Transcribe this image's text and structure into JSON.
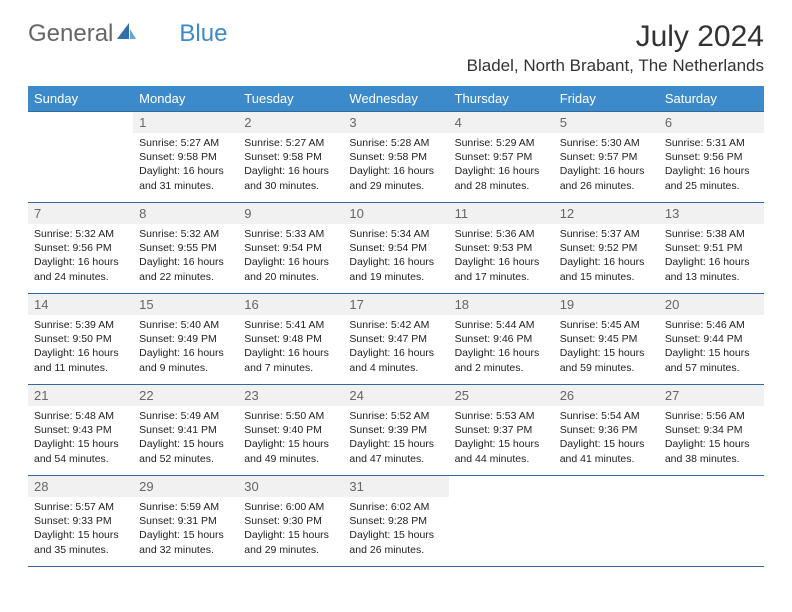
{
  "brand": {
    "part1": "General",
    "part2": "Blue"
  },
  "title": "July 2024",
  "location": "Bladel, North Brabant, The Netherlands",
  "colors": {
    "header_bg": "#3c8ac9",
    "header_text": "#ffffff",
    "border": "#34679a",
    "daynum_bg": "#f1f1f1",
    "daynum_text": "#666666",
    "body_text": "#222222",
    "background": "#ffffff"
  },
  "days_of_week": [
    "Sunday",
    "Monday",
    "Tuesday",
    "Wednesday",
    "Thursday",
    "Friday",
    "Saturday"
  ],
  "weeks": [
    [
      null,
      {
        "n": "1",
        "sr": "Sunrise: 5:27 AM",
        "ss": "Sunset: 9:58 PM",
        "d1": "Daylight: 16 hours",
        "d2": "and 31 minutes."
      },
      {
        "n": "2",
        "sr": "Sunrise: 5:27 AM",
        "ss": "Sunset: 9:58 PM",
        "d1": "Daylight: 16 hours",
        "d2": "and 30 minutes."
      },
      {
        "n": "3",
        "sr": "Sunrise: 5:28 AM",
        "ss": "Sunset: 9:58 PM",
        "d1": "Daylight: 16 hours",
        "d2": "and 29 minutes."
      },
      {
        "n": "4",
        "sr": "Sunrise: 5:29 AM",
        "ss": "Sunset: 9:57 PM",
        "d1": "Daylight: 16 hours",
        "d2": "and 28 minutes."
      },
      {
        "n": "5",
        "sr": "Sunrise: 5:30 AM",
        "ss": "Sunset: 9:57 PM",
        "d1": "Daylight: 16 hours",
        "d2": "and 26 minutes."
      },
      {
        "n": "6",
        "sr": "Sunrise: 5:31 AM",
        "ss": "Sunset: 9:56 PM",
        "d1": "Daylight: 16 hours",
        "d2": "and 25 minutes."
      }
    ],
    [
      {
        "n": "7",
        "sr": "Sunrise: 5:32 AM",
        "ss": "Sunset: 9:56 PM",
        "d1": "Daylight: 16 hours",
        "d2": "and 24 minutes."
      },
      {
        "n": "8",
        "sr": "Sunrise: 5:32 AM",
        "ss": "Sunset: 9:55 PM",
        "d1": "Daylight: 16 hours",
        "d2": "and 22 minutes."
      },
      {
        "n": "9",
        "sr": "Sunrise: 5:33 AM",
        "ss": "Sunset: 9:54 PM",
        "d1": "Daylight: 16 hours",
        "d2": "and 20 minutes."
      },
      {
        "n": "10",
        "sr": "Sunrise: 5:34 AM",
        "ss": "Sunset: 9:54 PM",
        "d1": "Daylight: 16 hours",
        "d2": "and 19 minutes."
      },
      {
        "n": "11",
        "sr": "Sunrise: 5:36 AM",
        "ss": "Sunset: 9:53 PM",
        "d1": "Daylight: 16 hours",
        "d2": "and 17 minutes."
      },
      {
        "n": "12",
        "sr": "Sunrise: 5:37 AM",
        "ss": "Sunset: 9:52 PM",
        "d1": "Daylight: 16 hours",
        "d2": "and 15 minutes."
      },
      {
        "n": "13",
        "sr": "Sunrise: 5:38 AM",
        "ss": "Sunset: 9:51 PM",
        "d1": "Daylight: 16 hours",
        "d2": "and 13 minutes."
      }
    ],
    [
      {
        "n": "14",
        "sr": "Sunrise: 5:39 AM",
        "ss": "Sunset: 9:50 PM",
        "d1": "Daylight: 16 hours",
        "d2": "and 11 minutes."
      },
      {
        "n": "15",
        "sr": "Sunrise: 5:40 AM",
        "ss": "Sunset: 9:49 PM",
        "d1": "Daylight: 16 hours",
        "d2": "and 9 minutes."
      },
      {
        "n": "16",
        "sr": "Sunrise: 5:41 AM",
        "ss": "Sunset: 9:48 PM",
        "d1": "Daylight: 16 hours",
        "d2": "and 7 minutes."
      },
      {
        "n": "17",
        "sr": "Sunrise: 5:42 AM",
        "ss": "Sunset: 9:47 PM",
        "d1": "Daylight: 16 hours",
        "d2": "and 4 minutes."
      },
      {
        "n": "18",
        "sr": "Sunrise: 5:44 AM",
        "ss": "Sunset: 9:46 PM",
        "d1": "Daylight: 16 hours",
        "d2": "and 2 minutes."
      },
      {
        "n": "19",
        "sr": "Sunrise: 5:45 AM",
        "ss": "Sunset: 9:45 PM",
        "d1": "Daylight: 15 hours",
        "d2": "and 59 minutes."
      },
      {
        "n": "20",
        "sr": "Sunrise: 5:46 AM",
        "ss": "Sunset: 9:44 PM",
        "d1": "Daylight: 15 hours",
        "d2": "and 57 minutes."
      }
    ],
    [
      {
        "n": "21",
        "sr": "Sunrise: 5:48 AM",
        "ss": "Sunset: 9:43 PM",
        "d1": "Daylight: 15 hours",
        "d2": "and 54 minutes."
      },
      {
        "n": "22",
        "sr": "Sunrise: 5:49 AM",
        "ss": "Sunset: 9:41 PM",
        "d1": "Daylight: 15 hours",
        "d2": "and 52 minutes."
      },
      {
        "n": "23",
        "sr": "Sunrise: 5:50 AM",
        "ss": "Sunset: 9:40 PM",
        "d1": "Daylight: 15 hours",
        "d2": "and 49 minutes."
      },
      {
        "n": "24",
        "sr": "Sunrise: 5:52 AM",
        "ss": "Sunset: 9:39 PM",
        "d1": "Daylight: 15 hours",
        "d2": "and 47 minutes."
      },
      {
        "n": "25",
        "sr": "Sunrise: 5:53 AM",
        "ss": "Sunset: 9:37 PM",
        "d1": "Daylight: 15 hours",
        "d2": "and 44 minutes."
      },
      {
        "n": "26",
        "sr": "Sunrise: 5:54 AM",
        "ss": "Sunset: 9:36 PM",
        "d1": "Daylight: 15 hours",
        "d2": "and 41 minutes."
      },
      {
        "n": "27",
        "sr": "Sunrise: 5:56 AM",
        "ss": "Sunset: 9:34 PM",
        "d1": "Daylight: 15 hours",
        "d2": "and 38 minutes."
      }
    ],
    [
      {
        "n": "28",
        "sr": "Sunrise: 5:57 AM",
        "ss": "Sunset: 9:33 PM",
        "d1": "Daylight: 15 hours",
        "d2": "and 35 minutes."
      },
      {
        "n": "29",
        "sr": "Sunrise: 5:59 AM",
        "ss": "Sunset: 9:31 PM",
        "d1": "Daylight: 15 hours",
        "d2": "and 32 minutes."
      },
      {
        "n": "30",
        "sr": "Sunrise: 6:00 AM",
        "ss": "Sunset: 9:30 PM",
        "d1": "Daylight: 15 hours",
        "d2": "and 29 minutes."
      },
      {
        "n": "31",
        "sr": "Sunrise: 6:02 AM",
        "ss": "Sunset: 9:28 PM",
        "d1": "Daylight: 15 hours",
        "d2": "and 26 minutes."
      },
      null,
      null,
      null
    ]
  ]
}
